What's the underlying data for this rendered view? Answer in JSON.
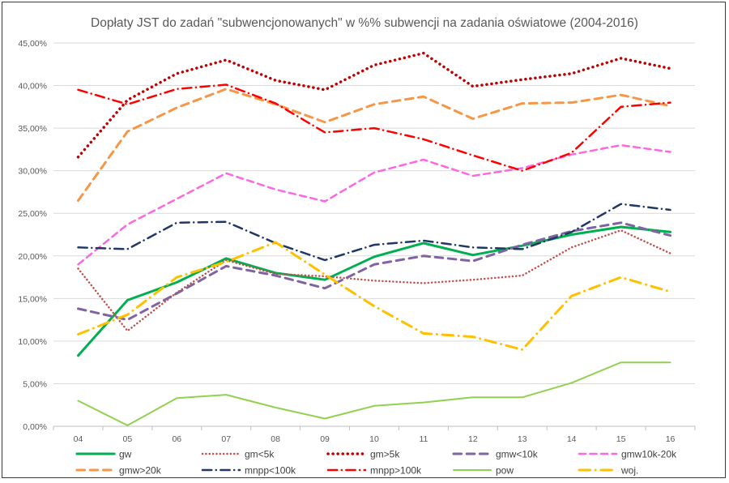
{
  "chart_data": {
    "type": "line",
    "title": "Dopłaty JST do zadań \"subwencjonowanych\" w %% subwencji na zadania oświatowe (2004-2016)",
    "xlabel": "",
    "ylabel": "",
    "x": [
      "04",
      "05",
      "06",
      "07",
      "08",
      "09",
      "10",
      "11",
      "12",
      "13",
      "14",
      "15",
      "16"
    ],
    "ylim": [
      0,
      45
    ],
    "yticks": [
      "0,00%",
      "5,00%",
      "10,00%",
      "15,00%",
      "20,00%",
      "25,00%",
      "30,00%",
      "35,00%",
      "40,00%",
      "45,00%"
    ],
    "grid": true,
    "legend_position": "bottom",
    "series": [
      {
        "name": "gw",
        "color": "#00b050",
        "dash": "solid",
        "width": 3,
        "values": [
          8.3,
          14.8,
          16.9,
          19.7,
          18.0,
          17.2,
          19.9,
          21.5,
          20.1,
          21.2,
          22.5,
          23.4,
          22.8
        ]
      },
      {
        "name": "gm<5k",
        "color": "#c0504d",
        "dash": "dot",
        "width": 2.5,
        "values": [
          18.5,
          11.2,
          15.7,
          19.5,
          17.9,
          17.6,
          17.1,
          16.8,
          17.2,
          17.7,
          21.0,
          23.0,
          20.3
        ]
      },
      {
        "name": "gm>5k",
        "color": "#c00000",
        "dash": "dot",
        "width": 3.5,
        "values": [
          31.6,
          38.3,
          41.4,
          43.0,
          40.6,
          39.5,
          42.4,
          43.8,
          39.9,
          40.7,
          41.4,
          43.2,
          42.0
        ]
      },
      {
        "name": "gmw<10k",
        "color": "#8064a2",
        "dash": "dash",
        "width": 3,
        "values": [
          13.8,
          12.5,
          15.6,
          18.8,
          17.7,
          16.2,
          19.0,
          20.0,
          19.4,
          21.3,
          22.9,
          23.9,
          22.4
        ]
      },
      {
        "name": "gmw10k-20k",
        "color": "#ff66e0",
        "dash": "dash",
        "width": 2.5,
        "values": [
          19.0,
          23.7,
          26.7,
          29.7,
          27.8,
          26.4,
          29.8,
          31.3,
          29.4,
          30.3,
          31.9,
          33.0,
          32.2
        ]
      },
      {
        "name": "gmw>20k",
        "color": "#f79646",
        "dash": "dash",
        "width": 3,
        "values": [
          26.5,
          34.6,
          37.4,
          39.6,
          37.8,
          35.7,
          37.8,
          38.7,
          36.1,
          37.9,
          38.0,
          38.9,
          37.6
        ]
      },
      {
        "name": "mnpp<100k",
        "color": "#1f3864",
        "dash": "dashdot",
        "width": 2.5,
        "values": [
          21.0,
          20.8,
          23.9,
          24.0,
          21.5,
          19.5,
          21.3,
          21.8,
          21.0,
          20.8,
          22.8,
          26.1,
          25.4
        ]
      },
      {
        "name": "mnpp>100k",
        "color": "#ff0000",
        "dash": "dashdot",
        "width": 2.5,
        "values": [
          39.5,
          37.8,
          39.6,
          40.1,
          37.9,
          34.5,
          35.0,
          33.7,
          31.8,
          30.0,
          32.1,
          37.5,
          38.0
        ]
      },
      {
        "name": "pow",
        "color": "#92d050",
        "dash": "solid",
        "width": 2,
        "values": [
          3.0,
          0.1,
          3.3,
          3.7,
          2.2,
          0.9,
          2.4,
          2.8,
          3.4,
          3.4,
          5.1,
          7.5,
          7.5
        ]
      },
      {
        "name": "woj.",
        "color": "#ffc000",
        "dash": "dashdot",
        "width": 3,
        "values": [
          10.8,
          13.1,
          17.5,
          19.3,
          21.6,
          17.8,
          14.1,
          10.9,
          10.5,
          9.0,
          15.3,
          17.5,
          15.8
        ]
      }
    ]
  }
}
